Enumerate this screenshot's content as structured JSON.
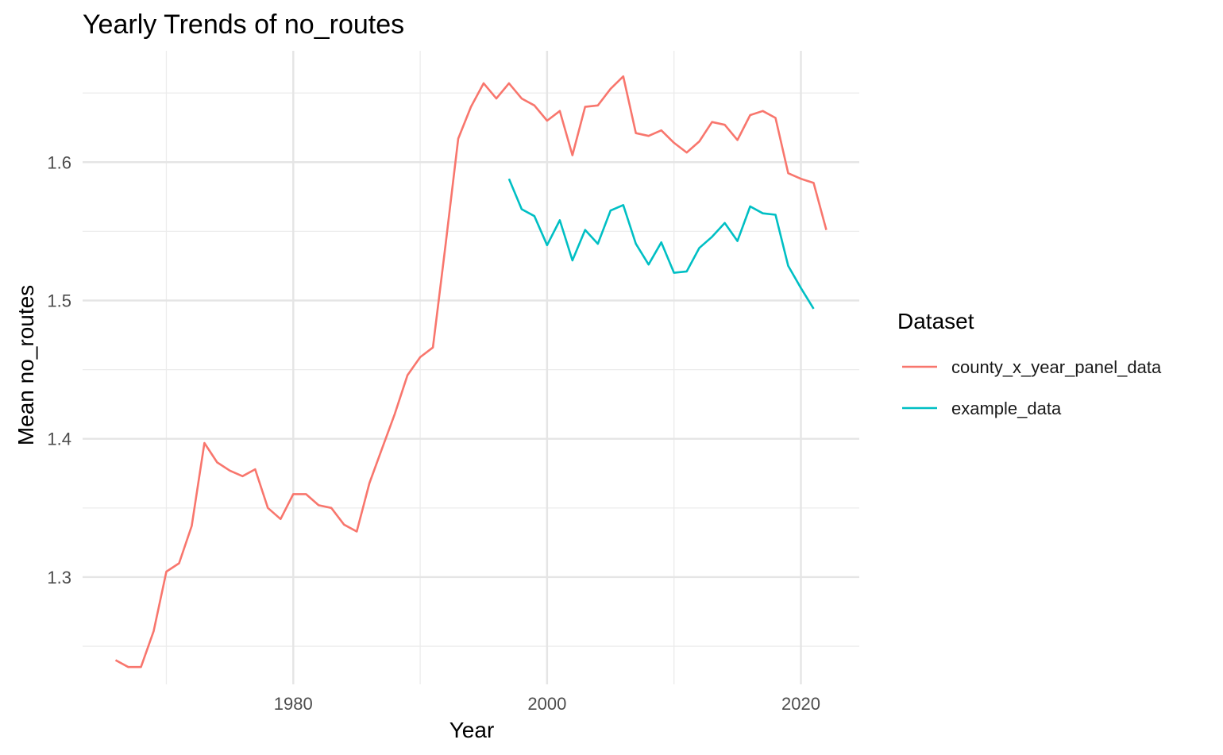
{
  "chart_data": {
    "type": "line",
    "title": "Yearly Trends of no_routes",
    "xlabel": "Year",
    "ylabel": "Mean no_routes",
    "xlim": [
      1963.4,
      2024.6
    ],
    "ylim": [
      1.2225,
      1.6805
    ],
    "x_ticks": [
      1980,
      2000,
      2020
    ],
    "x_minor_ticks": [
      1970,
      1990,
      2010
    ],
    "y_ticks": [
      1.3,
      1.4,
      1.5,
      1.6
    ],
    "y_minor_ticks": [
      1.25,
      1.35,
      1.45,
      1.55,
      1.65
    ],
    "grid": true,
    "legend": {
      "title": "Dataset",
      "position": "right"
    },
    "series": [
      {
        "name": "county_x_year_panel_data",
        "color": "#F8766D",
        "x": [
          1966,
          1967,
          1968,
          1969,
          1970,
          1971,
          1972,
          1973,
          1974,
          1975,
          1976,
          1977,
          1978,
          1979,
          1980,
          1981,
          1982,
          1983,
          1984,
          1985,
          1986,
          1987,
          1988,
          1989,
          1990,
          1991,
          1992,
          1993,
          1994,
          1995,
          1996,
          1997,
          1998,
          1999,
          2000,
          2001,
          2002,
          2003,
          2004,
          2005,
          2006,
          2007,
          2008,
          2009,
          2010,
          2011,
          2012,
          2013,
          2014,
          2015,
          2016,
          2017,
          2018,
          2019,
          2020,
          2021,
          2022
        ],
        "values": [
          1.24,
          1.235,
          1.235,
          1.261,
          1.304,
          1.31,
          1.337,
          1.397,
          1.383,
          1.377,
          1.373,
          1.378,
          1.35,
          1.342,
          1.36,
          1.36,
          1.352,
          1.35,
          1.338,
          1.333,
          1.368,
          1.393,
          1.418,
          1.446,
          1.459,
          1.466,
          1.54,
          1.617,
          1.64,
          1.657,
          1.646,
          1.657,
          1.646,
          1.641,
          1.63,
          1.637,
          1.605,
          1.64,
          1.641,
          1.653,
          1.662,
          1.621,
          1.619,
          1.623,
          1.614,
          1.607,
          1.615,
          1.629,
          1.627,
          1.616,
          1.634,
          1.637,
          1.632,
          1.592,
          1.588,
          1.585,
          1.551
        ]
      },
      {
        "name": "example_data",
        "color": "#00BFC4",
        "x": [
          1997,
          1998,
          1999,
          2000,
          2001,
          2002,
          2003,
          2004,
          2005,
          2006,
          2007,
          2008,
          2009,
          2010,
          2011,
          2012,
          2013,
          2014,
          2015,
          2016,
          2017,
          2018,
          2019,
          2020,
          2021
        ],
        "values": [
          1.588,
          1.566,
          1.561,
          1.54,
          1.558,
          1.529,
          1.551,
          1.541,
          1.565,
          1.569,
          1.541,
          1.526,
          1.542,
          1.52,
          1.521,
          1.538,
          1.546,
          1.556,
          1.543,
          1.568,
          1.563,
          1.562,
          1.525,
          1.509,
          1.494
        ]
      }
    ]
  }
}
